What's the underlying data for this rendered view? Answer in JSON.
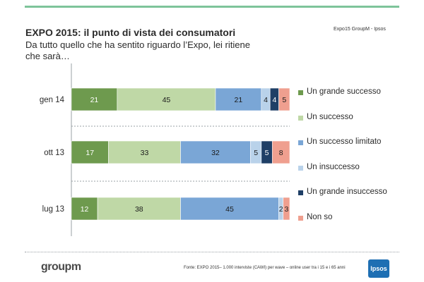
{
  "header": {
    "title": "EXPO 2015: il punto di vista dei consumatori",
    "subtitle": "Da tutto quello che ha sentito riguardo l’Expo, lei ritiene che sarà…",
    "source_top": "Expo15 GroupM - Ipsos"
  },
  "footer": {
    "source": "Fonte: EXPO 2015– 1.000 interviste (CAWI) per wave – online user tra i 15 e i 65 anni",
    "logo_left": "groupm",
    "logo_right": "Ipsos"
  },
  "colors": {
    "accent_bar": "#7ec49a",
    "gridline": "#9aa0a6"
  },
  "chart_data": {
    "type": "bar",
    "orientation": "horizontal",
    "stacked": true,
    "title": "EXPO 2015: il punto di vista dei consumatori",
    "xlabel": "",
    "ylabel": "",
    "xlim": [
      0,
      100
    ],
    "legend_position": "right",
    "categories": [
      "gen 14",
      "ott 13",
      "lug 13"
    ],
    "series": [
      {
        "name": "Un grande successo",
        "color": "#6e9a4e",
        "values": [
          21,
          17,
          12
        ],
        "labels": [
          "21",
          "17",
          "12"
        ]
      },
      {
        "name": "Un successo",
        "color": "#bfd8a6",
        "values": [
          45,
          33,
          38
        ],
        "labels": [
          "45",
          "33",
          "38"
        ]
      },
      {
        "name": "Un successo limitato",
        "color": "#7aa6d6",
        "values": [
          21,
          32,
          45
        ],
        "labels": [
          "21",
          "32",
          "45"
        ]
      },
      {
        "name": "Un insuccesso",
        "color": "#b9d2ea",
        "values": [
          4,
          5,
          2
        ],
        "labels": [
          "4",
          "5",
          "2"
        ]
      },
      {
        "name": "Un grande insuccesso",
        "color": "#1f3f66",
        "values": [
          4,
          5,
          0
        ],
        "labels": [
          "4",
          "5",
          ""
        ]
      },
      {
        "name": "Non so",
        "color": "#ef9f8f",
        "values": [
          5,
          8,
          3
        ],
        "labels": [
          "5",
          "8",
          "3"
        ]
      }
    ]
  }
}
